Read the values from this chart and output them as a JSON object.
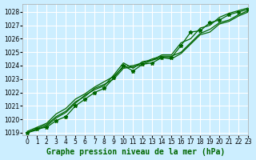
{
  "title": "Graphe pression niveau de la mer (hPa)",
  "bg_color": "#cceeff",
  "grid_color": "#ffffff",
  "line_color": "#006600",
  "xlim_min": -0.5,
  "xlim_max": 23,
  "ylim_min": 1018.8,
  "ylim_max": 1028.6,
  "yticks": [
    1019,
    1020,
    1021,
    1022,
    1023,
    1024,
    1025,
    1026,
    1027,
    1028
  ],
  "xticks": [
    0,
    1,
    2,
    3,
    4,
    5,
    6,
    7,
    8,
    9,
    10,
    11,
    12,
    13,
    14,
    15,
    16,
    17,
    18,
    19,
    20,
    21,
    22,
    23
  ],
  "series": [
    [
      1019.0,
      1019.3,
      1019.4,
      1019.9,
      1020.2,
      1021.0,
      1021.5,
      1022.0,
      1022.3,
      1023.1,
      1024.0,
      1023.6,
      1024.1,
      1024.2,
      1024.6,
      1024.6,
      1025.5,
      1026.5,
      1026.6,
      1027.2,
      1027.4,
      1027.8,
      1028.0,
      1028.2
    ],
    [
      1019.0,
      1019.2,
      1019.5,
      1020.1,
      1020.5,
      1021.2,
      1021.8,
      1022.2,
      1022.5,
      1023.3,
      1024.2,
      1023.8,
      1024.3,
      1024.4,
      1024.8,
      1024.8,
      1025.7,
      1026.0,
      1026.8,
      1027.0,
      1027.6,
      1027.9,
      1028.1,
      1028.3
    ],
    [
      1019.1,
      1019.4,
      1019.7,
      1020.4,
      1020.8,
      1021.5,
      1021.9,
      1022.4,
      1022.8,
      1023.2,
      1023.9,
      1024.0,
      1024.2,
      1024.5,
      1024.7,
      1024.7,
      1025.0,
      1025.7,
      1026.4,
      1026.7,
      1027.2,
      1027.4,
      1027.8,
      1028.1
    ],
    [
      1019.0,
      1019.3,
      1019.6,
      1020.2,
      1020.6,
      1021.3,
      1021.7,
      1022.3,
      1022.6,
      1023.0,
      1023.8,
      1023.9,
      1024.1,
      1024.4,
      1024.6,
      1024.5,
      1024.9,
      1025.6,
      1026.3,
      1026.5,
      1027.1,
      1027.3,
      1027.7,
      1028.0
    ]
  ],
  "marker_series_index": 0,
  "title_fontsize": 7.0,
  "tick_fontsize": 5.5
}
